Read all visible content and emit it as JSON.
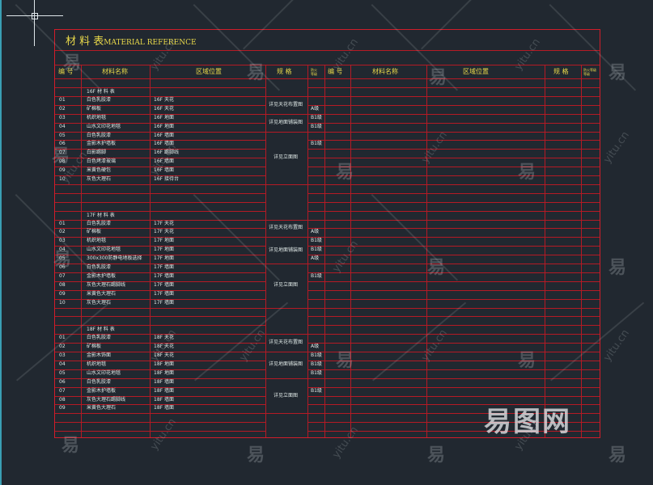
{
  "title": {
    "cn": "材 料 表",
    "en": "MATERIAL REFERENCE"
  },
  "headers": {
    "left": {
      "no": "编 号",
      "name": "材料名称",
      "area": "区域位置",
      "spec": "规  格",
      "fire": "防火\n等级"
    },
    "right": {
      "no": "编 号",
      "name": "材料名称",
      "area": "区域位置",
      "spec": "规  格",
      "fire": "防火等级\n等级"
    }
  },
  "sections": [
    {
      "heading": "16F 材 料 表",
      "rows": [
        {
          "no": "01",
          "name": "白色乳胶漆",
          "area": "16F 天花",
          "fire": ""
        },
        {
          "no": "02",
          "name": "矿棉板",
          "area": "16F 天花",
          "fire": "A级"
        },
        {
          "no": "03",
          "name": "机织地毯",
          "area": "16F 地面",
          "fire": "B1级"
        },
        {
          "no": "04",
          "name": "山水文印花地毯",
          "area": "16F 地面",
          "fire": "B1级"
        },
        {
          "no": "05",
          "name": "白色乳胶漆",
          "area": "16F 墙面",
          "fire": ""
        },
        {
          "no": "06",
          "name": "金影木护墙板",
          "area": "16F 墙面",
          "fire": "B1级"
        },
        {
          "no": "07",
          "name": "白影踢脚",
          "area": "16F 踢脚线",
          "fire": ""
        },
        {
          "no": "08",
          "name": "白色烤漆玻璃",
          "area": "16F 墙面",
          "fire": ""
        },
        {
          "no": "09",
          "name": "米黄色硬包",
          "area": "16F 墙面",
          "fire": ""
        },
        {
          "no": "10",
          "name": "灰色大理石",
          "area": "16F 接待台",
          "fire": ""
        }
      ],
      "specs": [
        "详见天花布置图",
        "详见地面铺装图",
        "详见立面图"
      ]
    },
    {
      "heading": "17F 材 料 表",
      "rows": [
        {
          "no": "01",
          "name": "白色乳胶漆",
          "area": "17F 天花",
          "fire": ""
        },
        {
          "no": "02",
          "name": "矿棉板",
          "area": "17F 天花",
          "fire": "A级"
        },
        {
          "no": "03",
          "name": "机织地毯",
          "area": "17F 地面",
          "fire": "B1级"
        },
        {
          "no": "04",
          "name": "山水文印花地毯",
          "area": "17F 地面",
          "fire": "B1级"
        },
        {
          "no": "05",
          "name": "300x300防静电地板选择",
          "area": "17F 地面",
          "fire": "A级"
        },
        {
          "no": "06",
          "name": "白色乳胶漆",
          "area": "17F 墙面",
          "fire": ""
        },
        {
          "no": "07",
          "name": "金影木护墙板",
          "area": "17F 墙面",
          "fire": "B1级"
        },
        {
          "no": "08",
          "name": "灰色大理石踢脚线",
          "area": "17F 墙面",
          "fire": ""
        },
        {
          "no": "09",
          "name": "米黄色大理石",
          "area": "17F 墙面",
          "fire": ""
        },
        {
          "no": "10",
          "name": "灰色大理石",
          "area": "17F 墙面",
          "fire": ""
        }
      ],
      "specs": [
        "详见天花布置图",
        "详见地面铺装图",
        "详见立面图"
      ]
    },
    {
      "heading": "18F 材 料 表",
      "rows": [
        {
          "no": "01",
          "name": "白色乳胶漆",
          "area": "18F 天花",
          "fire": ""
        },
        {
          "no": "02",
          "name": "矿棉板",
          "area": "18F 天花",
          "fire": "A级"
        },
        {
          "no": "03",
          "name": "金影木饰面",
          "area": "18F 天花",
          "fire": "B1级"
        },
        {
          "no": "04",
          "name": "机织地毯",
          "area": "18F 地面",
          "fire": "B1级"
        },
        {
          "no": "05",
          "name": "山水文印花地毯",
          "area": "18F 地面",
          "fire": "B1级"
        },
        {
          "no": "06",
          "name": "白色乳胶漆",
          "area": "18F 墙面",
          "fire": ""
        },
        {
          "no": "07",
          "name": "金影木护墙板",
          "area": "18F 墙面",
          "fire": "B1级"
        },
        {
          "no": "08",
          "name": "灰色大理石踢脚线",
          "area": "18F 墙面",
          "fire": ""
        },
        {
          "no": "09",
          "name": "米黄色大理石",
          "area": "18F 墙面",
          "fire": ""
        }
      ],
      "specs": [
        "详见天花布置图",
        "详见地面铺装图",
        "详见立面图"
      ]
    }
  ],
  "watermark": {
    "char": "易",
    "url": "yitu.cn",
    "logo": "易图网"
  },
  "colors": {
    "background": "#212830",
    "grid": "#b51a25",
    "border": "#d11d2a",
    "header_text": "#e8d84a",
    "cell_text": "#dfe8e6"
  }
}
